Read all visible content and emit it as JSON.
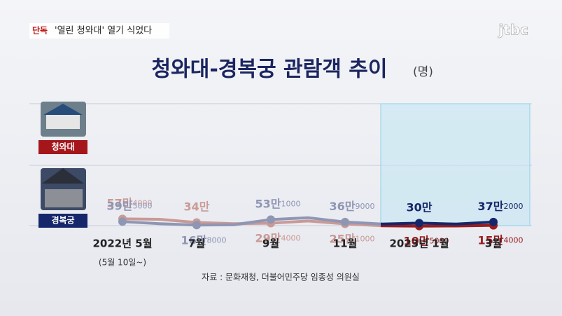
{
  "header": {
    "badge": "단독",
    "headline": "'열린 청와대' 열기 식었다",
    "logo": "jtbc"
  },
  "chart_data": {
    "type": "line",
    "title": "청와대-경복궁 관람객 추이",
    "unit": "(명)",
    "categories": [
      "2022년 5월",
      null,
      "7월",
      null,
      "9월",
      null,
      "11월",
      null,
      "2023년 1월",
      null,
      "3월"
    ],
    "note": "(5월 10일~)",
    "series": [
      {
        "name": "청와대",
        "color": "#c99a96",
        "highlight_color": "#9a1c1e",
        "values": [
          574000,
          545000,
          340000,
          260000,
          294000,
          440000,
          251000,
          123000,
          105000,
          114000,
          154000
        ],
        "value_labels": [
          "57만4000",
          null,
          "34만",
          null,
          "29만4000",
          null,
          "25만1000",
          null,
          "10만5000",
          null,
          "15만4000"
        ]
      },
      {
        "name": "경복궁",
        "color": "#8f96b4",
        "highlight_color": "#16266a",
        "values": [
          395000,
          260000,
          168000,
          195000,
          531000,
          650000,
          369000,
          240000,
          300000,
          236000,
          372000
        ],
        "value_labels": [
          "39만5000",
          null,
          "16만8000",
          null,
          "53만1000",
          null,
          "36만9000",
          null,
          "30만",
          null,
          "37만2000"
        ]
      }
    ],
    "source": "자료 : 문화재청, 더불어민주당 임종성 의원실"
  }
}
